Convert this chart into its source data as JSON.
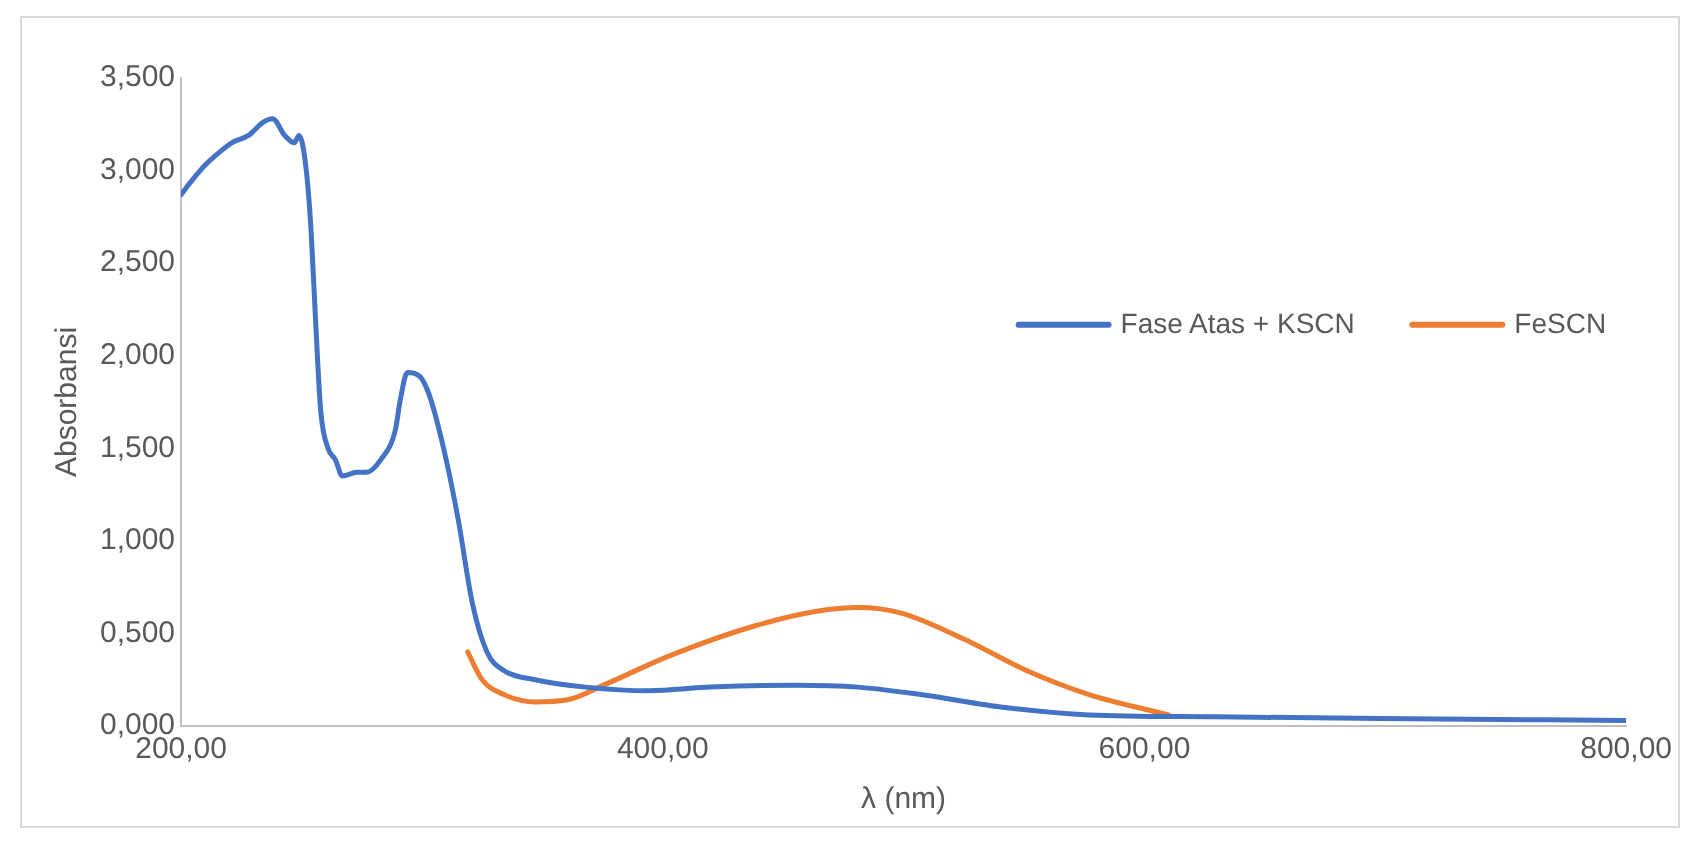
{
  "chart_data": {
    "type": "line",
    "xlabel": "λ (nm)",
    "ylabel": "Absorbansi",
    "xlim": [
      200,
      800
    ],
    "xticks": [
      {
        "value": 200,
        "label": "200,00"
      },
      {
        "value": 400,
        "label": "400,00"
      },
      {
        "value": 600,
        "label": "600,00"
      },
      {
        "value": 800,
        "label": "800,00"
      }
    ],
    "ylim": [
      0,
      3.5
    ],
    "yticks": [
      {
        "value": 0,
        "label": "0,000"
      },
      {
        "value": 0.5,
        "label": "0,500"
      },
      {
        "value": 1,
        "label": "1,000"
      },
      {
        "value": 1.5,
        "label": "1,500"
      },
      {
        "value": 2,
        "label": "2,000"
      },
      {
        "value": 2.5,
        "label": "2,500"
      },
      {
        "value": 3,
        "label": "3,000"
      },
      {
        "value": 3.5,
        "label": "3,500"
      }
    ],
    "grid": false,
    "legend": "right",
    "marker": "none",
    "line_style": "solid",
    "series": [
      {
        "name": "Fase Atas + KSCN",
        "color": "#4472c4",
        "x": [
          200,
          203.5,
          210,
          216,
          221,
          228,
          234,
          238,
          243,
          247,
          249,
          252,
          254,
          256,
          258,
          261,
          264,
          267,
          273,
          277,
          283,
          289,
          291,
          294,
          299,
          303,
          309,
          315,
          321,
          327,
          334,
          347,
          368,
          394,
          420,
          455,
          481,
          507,
          542,
          577,
          629,
          698,
          800
        ],
        "values": [
          2.87,
          2.93,
          3.03,
          3.1,
          3.15,
          3.19,
          3.26,
          3.28,
          3.19,
          3.15,
          3.19,
          3.0,
          2.67,
          2.15,
          1.7,
          1.5,
          1.44,
          1.35,
          1.37,
          1.37,
          1.44,
          1.6,
          1.76,
          1.91,
          1.89,
          1.79,
          1.5,
          1.12,
          0.66,
          0.4,
          0.3,
          0.25,
          0.21,
          0.19,
          0.21,
          0.22,
          0.21,
          0.17,
          0.1,
          0.06,
          0.05,
          0.04,
          0.03
        ]
      },
      {
        "name": "FeSCN",
        "color": "#ed7d31",
        "x": [
          319,
          325,
          334,
          347,
          360,
          377,
          403,
          438,
          464,
          481,
          499,
          525,
          551,
          577,
          610
        ],
        "values": [
          0.4,
          0.25,
          0.17,
          0.13,
          0.14,
          0.23,
          0.38,
          0.54,
          0.62,
          0.64,
          0.61,
          0.47,
          0.3,
          0.17,
          0.06
        ]
      }
    ]
  }
}
